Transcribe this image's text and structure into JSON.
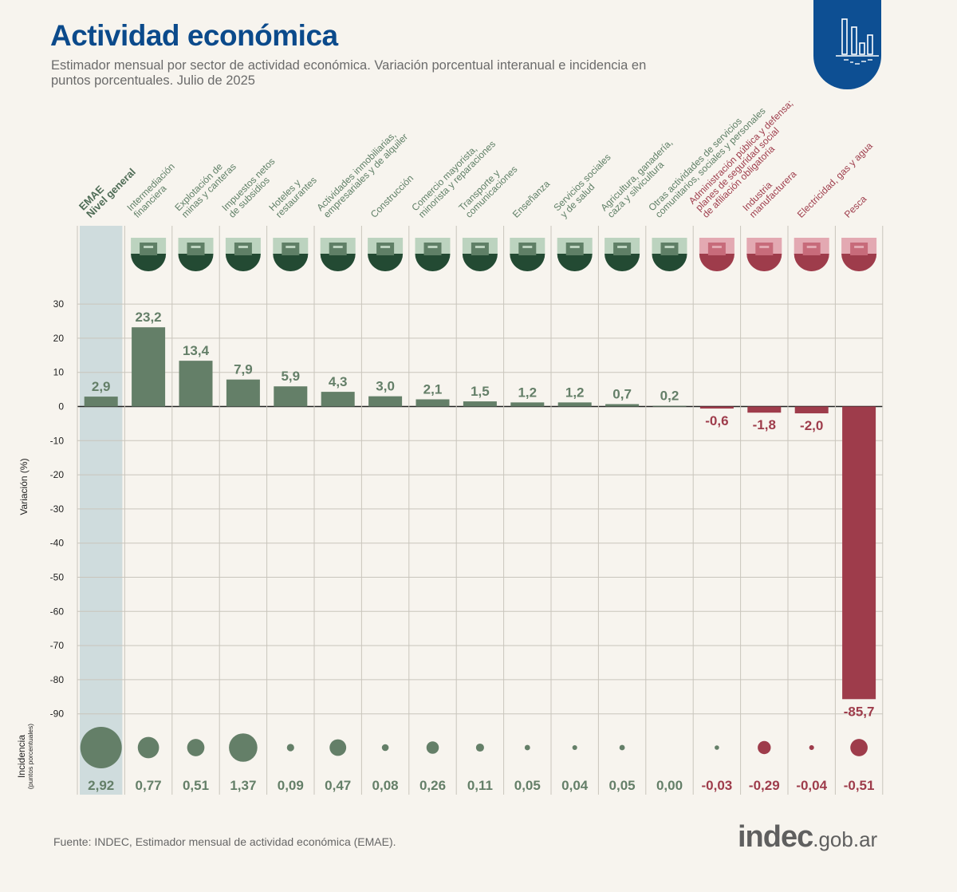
{
  "header": {
    "title": "Actividad económica",
    "subtitle": "Estimador mensual por sector de actividad económica. Variación porcentual interanual e incidencia en puntos porcentuales. Julio de 2025",
    "badge_icon": "bar-chart-icon"
  },
  "footer": {
    "source": "Fuente: INDEC, Estimador mensual de actividad económica (EMAE).",
    "brand_main": "indec",
    "brand_suffix": ".gob.ar"
  },
  "colors": {
    "positive": "#647f68",
    "negative": "#9e3c4b",
    "highlight": "#cfdcdd",
    "title": "#0b4a8b",
    "background": "#f7f4ee"
  },
  "chart_data": {
    "type": "bar",
    "title": "Actividad económica",
    "ylabel": "Variación (%)",
    "secondary_label": "Incidencia",
    "secondary_sublabel": "(puntos porcentuales)",
    "ylim": [
      -95,
      30
    ],
    "yticks": [
      30,
      20,
      10,
      0,
      -10,
      -20,
      -30,
      -40,
      -50,
      -60,
      -70,
      -80,
      -90
    ],
    "grid": true,
    "categories": [
      "EMAE Nivel general",
      "Intermediación financiera",
      "Explotación de minas y canteras",
      "Impuestos netos de subsidios",
      "Hoteles y restaurantes",
      "Actividades inmobiliarias, empresariales y de alquiler",
      "Construcción",
      "Comercio mayorista, minorista y reparaciones",
      "Transporte y comunicaciones",
      "Enseñanza",
      "Servicios sociales y de salud",
      "Agricultura, ganadería, caza y silvicultura",
      "Otras actividades de servicios comunitarios, sociales y personales",
      "Administración pública y defensa; planes de seguridad social de afiliación obligatoria",
      "Industria manufacturera",
      "Electricidad, gas y agua",
      "Pesca"
    ],
    "category_lines": [
      [
        "EMAE",
        "Nivel general"
      ],
      [
        "Intermediación",
        "financiera"
      ],
      [
        "Explotación de",
        "minas y canteras"
      ],
      [
        "Impuestos netos",
        "de subsidios"
      ],
      [
        "Hoteles y",
        "restaurantes"
      ],
      [
        "Actividades inmobiliarias,",
        "empresariales y de alquiler"
      ],
      [
        "Construcción"
      ],
      [
        "Comercio mayorista,",
        "minorista y reparaciones"
      ],
      [
        "Transporte y",
        "comunicaciones"
      ],
      [
        "Enseñanza"
      ],
      [
        "Servicios sociales",
        "y de salud"
      ],
      [
        "Agricultura, ganadería,",
        "caza y silvicultura"
      ],
      [
        "Otras actividades de servicios",
        "comunitarios, sociales y personales"
      ],
      [
        "Administración pública y defensa;",
        "planes de seguridad social",
        "de afiliación obligatoria"
      ],
      [
        "Industria",
        "manufacturera"
      ],
      [
        "Electricidad, gas y agua"
      ],
      [
        "Pesca"
      ]
    ],
    "icons": [
      "none",
      "bank-icon",
      "oil-pump-icon",
      "tax-document-coins-icon",
      "hotel-icon",
      "real-estate-icon",
      "dump-truck-icon",
      "shopping-cart-icon",
      "transport-antenna-icon",
      "school-desk-icon",
      "health-kit-icon",
      "cow-grain-icon",
      "theater-masks-icon",
      "congress-building-icon",
      "gears-icon",
      "power-tower-icon",
      "fish-hook-icon"
    ],
    "series": [
      {
        "name": "Variación (%)",
        "values": [
          2.9,
          23.2,
          13.4,
          7.9,
          5.9,
          4.3,
          3.0,
          2.1,
          1.5,
          1.2,
          1.2,
          0.7,
          0.2,
          -0.6,
          -1.8,
          -2.0,
          -85.7
        ],
        "labels": [
          "2,9",
          "23,2",
          "13,4",
          "7,9",
          "5,9",
          "4,3",
          "3,0",
          "2,1",
          "1,5",
          "1,2",
          "1,2",
          "0,7",
          "0,2",
          "-0,6",
          "-1,8",
          "-2,0",
          "-85,7"
        ]
      },
      {
        "name": "Incidencia (puntos porcentuales)",
        "values": [
          2.92,
          0.77,
          0.51,
          1.37,
          0.09,
          0.47,
          0.08,
          0.26,
          0.11,
          0.05,
          0.04,
          0.05,
          0.0,
          -0.03,
          -0.29,
          -0.04,
          -0.51
        ],
        "labels": [
          "2,92",
          "0,77",
          "0,51",
          "1,37",
          "0,09",
          "0,47",
          "0,08",
          "0,26",
          "0,11",
          "0,05",
          "0,04",
          "0,05",
          "0,00",
          "-0,03",
          "-0,29",
          "-0,04",
          "-0,51"
        ]
      }
    ],
    "highlighted_category": "EMAE Nivel general"
  }
}
